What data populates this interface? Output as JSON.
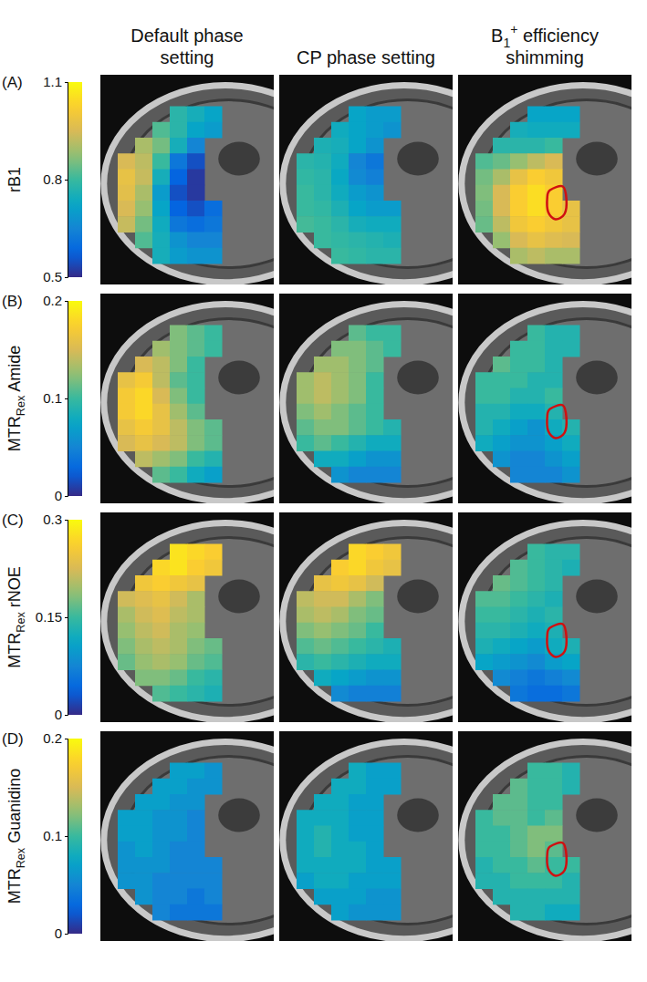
{
  "chart_data": {
    "type": "heatmap",
    "columns": [
      {
        "text": "Default phase setting"
      },
      {
        "text": "CP phase setting"
      },
      {
        "text": "B",
        "sub": "1",
        "sup": "+",
        "suffix": " efficiency shimming"
      }
    ],
    "rows": [
      {
        "letter": "(A)",
        "colorbar": {
          "label": {
            "text": "rB1"
          },
          "range": [
            0.5,
            1.1
          ],
          "ticks": [
            0.5,
            0.8,
            1.1
          ]
        },
        "cells": [
          [
            [
              null,
              null,
              null,
              0.78,
              0.75,
              0.72
            ],
            [
              null,
              null,
              0.82,
              0.78,
              0.72,
              0.7
            ],
            [
              null,
              0.9,
              0.85,
              0.75,
              0.65,
              null
            ],
            [
              0.95,
              0.92,
              0.8,
              0.62,
              0.55,
              null
            ],
            [
              0.98,
              0.93,
              0.75,
              0.58,
              0.52,
              null
            ],
            [
              0.97,
              0.9,
              0.7,
              0.55,
              0.52,
              null
            ],
            [
              0.95,
              0.88,
              0.72,
              0.58,
              0.55,
              0.6
            ],
            [
              0.93,
              0.85,
              0.74,
              0.62,
              0.6,
              0.62
            ],
            [
              null,
              0.82,
              0.75,
              0.68,
              0.65,
              0.65
            ],
            [
              null,
              null,
              0.75,
              0.7,
              0.68,
              0.68
            ]
          ],
          [
            [
              null,
              null,
              null,
              0.72,
              0.7,
              0.7
            ],
            [
              null,
              null,
              0.74,
              0.72,
              0.7,
              0.68
            ],
            [
              null,
              0.76,
              0.75,
              0.72,
              0.68,
              null
            ],
            [
              0.78,
              0.77,
              0.74,
              0.65,
              0.62,
              null
            ],
            [
              0.79,
              0.78,
              0.73,
              0.66,
              0.64,
              null
            ],
            [
              0.8,
              0.78,
              0.74,
              0.7,
              0.68,
              null
            ],
            [
              0.8,
              0.79,
              0.76,
              0.72,
              0.7,
              0.7
            ],
            [
              0.81,
              0.8,
              0.78,
              0.75,
              0.74,
              0.74
            ],
            [
              null,
              0.8,
              0.79,
              0.78,
              0.77,
              0.76
            ],
            [
              null,
              null,
              0.8,
              0.79,
              0.78,
              0.78
            ]
          ],
          [
            [
              null,
              null,
              null,
              0.72,
              0.72,
              0.72
            ],
            [
              null,
              null,
              0.75,
              0.74,
              0.74,
              0.74
            ],
            [
              null,
              0.78,
              0.78,
              0.78,
              0.8,
              null
            ],
            [
              0.82,
              0.84,
              0.88,
              0.92,
              0.95,
              null
            ],
            [
              0.85,
              0.9,
              0.98,
              1.02,
              1.0,
              null
            ],
            [
              0.86,
              0.95,
              1.02,
              1.05,
              1.02,
              null
            ],
            [
              0.85,
              0.95,
              1.02,
              1.05,
              1.02,
              0.98
            ],
            [
              0.84,
              0.92,
              1.0,
              1.02,
              1.0,
              0.98
            ],
            [
              null,
              0.88,
              0.95,
              0.98,
              0.96,
              0.95
            ],
            [
              null,
              null,
              0.9,
              0.92,
              0.9,
              0.9
            ]
          ]
        ]
      },
      {
        "letter": "(B)",
        "colorbar": {
          "label": {
            "text": "MTR",
            "sub": "Rex",
            "suffix": " Amide"
          },
          "range": [
            0,
            0.2
          ],
          "ticks": [
            0,
            0.1,
            0.2
          ]
        },
        "cells": [
          [
            [
              null,
              null,
              null,
              0.12,
              0.11,
              0.1
            ],
            [
              null,
              null,
              0.13,
              0.12,
              0.11,
              0.1
            ],
            [
              null,
              0.15,
              0.14,
              0.12,
              0.1,
              null
            ],
            [
              0.16,
              0.17,
              0.14,
              0.11,
              0.1,
              null
            ],
            [
              0.17,
              0.18,
              0.15,
              0.12,
              0.1,
              null
            ],
            [
              0.17,
              0.18,
              0.16,
              0.13,
              0.11,
              null
            ],
            [
              0.16,
              0.17,
              0.16,
              0.14,
              0.12,
              0.11
            ],
            [
              0.15,
              0.16,
              0.15,
              0.14,
              0.12,
              0.11
            ],
            [
              null,
              0.14,
              0.13,
              0.12,
              0.1,
              0.09
            ],
            [
              null,
              null,
              0.11,
              0.1,
              0.08,
              0.07
            ]
          ],
          [
            [
              null,
              null,
              null,
              0.11,
              0.1,
              0.1
            ],
            [
              null,
              null,
              0.12,
              0.12,
              0.11,
              0.1
            ],
            [
              null,
              0.13,
              0.13,
              0.12,
              0.11,
              null
            ],
            [
              0.13,
              0.14,
              0.13,
              0.12,
              0.1,
              null
            ],
            [
              0.13,
              0.14,
              0.13,
              0.12,
              0.1,
              null
            ],
            [
              0.12,
              0.13,
              0.12,
              0.11,
              0.1,
              null
            ],
            [
              0.11,
              0.12,
              0.12,
              0.11,
              0.1,
              0.09
            ],
            [
              0.1,
              0.11,
              0.1,
              0.09,
              0.08,
              0.08
            ],
            [
              null,
              0.08,
              0.08,
              0.07,
              0.06,
              0.06
            ],
            [
              null,
              null,
              0.06,
              0.05,
              0.05,
              0.05
            ]
          ],
          [
            [
              null,
              null,
              null,
              0.1,
              0.09,
              0.09
            ],
            [
              null,
              null,
              0.1,
              0.1,
              0.09,
              0.09
            ],
            [
              null,
              0.11,
              0.1,
              0.1,
              0.09,
              null
            ],
            [
              0.1,
              0.1,
              0.1,
              0.09,
              0.09,
              null
            ],
            [
              0.1,
              0.1,
              0.09,
              0.09,
              0.1,
              null
            ],
            [
              0.09,
              0.09,
              0.08,
              0.08,
              0.09,
              null
            ],
            [
              0.09,
              0.08,
              0.07,
              0.06,
              0.08,
              0.09
            ],
            [
              0.08,
              0.07,
              0.06,
              0.06,
              0.07,
              0.08
            ],
            [
              null,
              0.06,
              0.05,
              0.05,
              0.06,
              0.07
            ],
            [
              null,
              null,
              0.05,
              0.05,
              0.05,
              0.06
            ]
          ]
        ]
      },
      {
        "letter": "(C)",
        "colorbar": {
          "label": {
            "text": "MTR",
            "sub": "Rex",
            "suffix": " rNOE"
          },
          "range": [
            0,
            0.3
          ],
          "ticks": [
            0,
            0.15,
            0.3
          ]
        },
        "cells": [
          [
            [
              null,
              null,
              null,
              0.28,
              0.27,
              0.26
            ],
            [
              null,
              null,
              0.27,
              0.28,
              0.26,
              0.25
            ],
            [
              null,
              0.25,
              0.26,
              0.25,
              0.24,
              null
            ],
            [
              0.22,
              0.23,
              0.24,
              0.22,
              0.2,
              null
            ],
            [
              0.2,
              0.22,
              0.23,
              0.21,
              0.2,
              null
            ],
            [
              0.19,
              0.21,
              0.22,
              0.2,
              0.19,
              null
            ],
            [
              0.18,
              0.2,
              0.21,
              0.2,
              0.18,
              0.17
            ],
            [
              0.17,
              0.19,
              0.2,
              0.19,
              0.17,
              0.16
            ],
            [
              null,
              0.18,
              0.18,
              0.17,
              0.15,
              0.14
            ],
            [
              null,
              null,
              0.16,
              0.15,
              0.14,
              0.13
            ]
          ],
          [
            [
              null,
              null,
              null,
              0.27,
              0.26,
              0.25
            ],
            [
              null,
              null,
              0.26,
              0.27,
              0.25,
              0.24
            ],
            [
              null,
              0.24,
              0.25,
              0.24,
              0.22,
              null
            ],
            [
              0.21,
              0.22,
              0.22,
              0.2,
              0.18,
              null
            ],
            [
              0.2,
              0.21,
              0.2,
              0.18,
              0.17,
              null
            ],
            [
              0.18,
              0.19,
              0.18,
              0.17,
              0.15,
              null
            ],
            [
              0.16,
              0.17,
              0.16,
              0.15,
              0.14,
              0.13
            ],
            [
              0.14,
              0.15,
              0.14,
              0.13,
              0.12,
              0.12
            ],
            [
              null,
              0.12,
              0.11,
              0.1,
              0.09,
              0.09
            ],
            [
              null,
              null,
              0.08,
              0.07,
              0.07,
              0.07
            ]
          ],
          [
            [
              null,
              null,
              null,
              0.15,
              0.14,
              0.14
            ],
            [
              null,
              null,
              0.16,
              0.15,
              0.14,
              0.13
            ],
            [
              null,
              0.17,
              0.16,
              0.15,
              0.14,
              null
            ],
            [
              0.16,
              0.16,
              0.15,
              0.14,
              0.13,
              null
            ],
            [
              0.15,
              0.15,
              0.14,
              0.13,
              0.14,
              null
            ],
            [
              0.14,
              0.14,
              0.13,
              0.12,
              0.13,
              null
            ],
            [
              0.13,
              0.12,
              0.11,
              0.1,
              0.12,
              0.13
            ],
            [
              0.11,
              0.1,
              0.09,
              0.08,
              0.1,
              0.11
            ],
            [
              null,
              0.08,
              0.07,
              0.06,
              0.07,
              0.08
            ],
            [
              null,
              null,
              0.06,
              0.05,
              0.05,
              0.06
            ]
          ]
        ]
      },
      {
        "letter": "(D)",
        "colorbar": {
          "label": {
            "text": "MTR",
            "sub": "Rex",
            "suffix": " Guanidino"
          },
          "range": [
            0,
            0.2
          ],
          "ticks": [
            0,
            0.1,
            0.2
          ]
        },
        "cells": [
          [
            [
              null,
              null,
              null,
              0.07,
              0.07,
              0.06
            ],
            [
              null,
              null,
              0.07,
              0.07,
              0.06,
              0.06
            ],
            [
              null,
              0.07,
              0.07,
              0.06,
              0.06,
              null
            ],
            [
              0.07,
              0.07,
              0.06,
              0.06,
              0.05,
              null
            ],
            [
              0.07,
              0.07,
              0.06,
              0.06,
              0.05,
              null
            ],
            [
              0.06,
              0.07,
              0.06,
              0.05,
              0.05,
              null
            ],
            [
              0.06,
              0.06,
              0.06,
              0.05,
              0.05,
              0.05
            ],
            [
              0.06,
              0.06,
              0.05,
              0.05,
              0.05,
              0.05
            ],
            [
              null,
              0.06,
              0.05,
              0.05,
              0.04,
              0.05
            ],
            [
              null,
              null,
              0.05,
              0.04,
              0.04,
              0.04
            ]
          ],
          [
            [
              null,
              null,
              null,
              0.08,
              0.07,
              0.07
            ],
            [
              null,
              null,
              0.08,
              0.08,
              0.07,
              0.07
            ],
            [
              null,
              0.08,
              0.08,
              0.07,
              0.07,
              null
            ],
            [
              0.08,
              0.08,
              0.08,
              0.07,
              0.07,
              null
            ],
            [
              0.08,
              0.09,
              0.08,
              0.07,
              0.07,
              null
            ],
            [
              0.08,
              0.09,
              0.08,
              0.08,
              0.07,
              null
            ],
            [
              0.08,
              0.08,
              0.08,
              0.08,
              0.07,
              0.07
            ],
            [
              0.07,
              0.08,
              0.08,
              0.07,
              0.07,
              0.07
            ],
            [
              null,
              0.07,
              0.07,
              0.07,
              0.06,
              0.06
            ],
            [
              null,
              null,
              0.07,
              0.06,
              0.06,
              0.06
            ]
          ],
          [
            [
              null,
              null,
              null,
              0.1,
              0.1,
              0.09
            ],
            [
              null,
              null,
              0.11,
              0.1,
              0.1,
              0.09
            ],
            [
              null,
              0.11,
              0.11,
              0.1,
              0.1,
              null
            ],
            [
              0.1,
              0.11,
              0.11,
              0.1,
              0.11,
              null
            ],
            [
              0.1,
              0.1,
              0.11,
              0.12,
              0.12,
              null
            ],
            [
              0.1,
              0.1,
              0.11,
              0.12,
              0.11,
              null
            ],
            [
              0.09,
              0.1,
              0.1,
              0.11,
              0.1,
              0.1
            ],
            [
              0.09,
              0.09,
              0.1,
              0.1,
              0.1,
              0.09
            ],
            [
              null,
              0.09,
              0.09,
              0.09,
              0.09,
              0.09
            ],
            [
              null,
              null,
              0.09,
              0.09,
              0.08,
              0.08
            ]
          ]
        ]
      }
    ]
  }
}
